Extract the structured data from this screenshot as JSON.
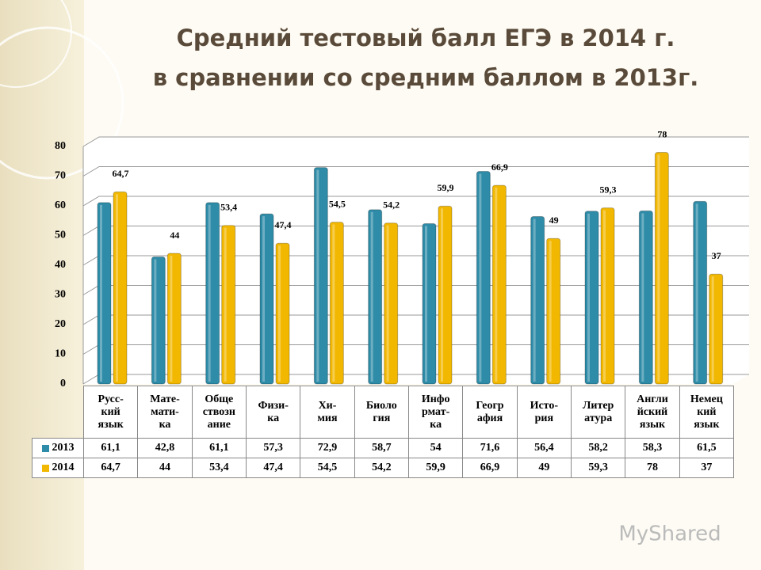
{
  "chart_data": {
    "type": "bar",
    "title": "Средний тестовый балл ЕГЭ в 2014 г.",
    "subtitle": "в сравнении со средним баллом в 2013г.",
    "categories": [
      "Русс-\nкий\nязык",
      "Мате-\nмати-\nка",
      "Обще\nствозн\nание",
      "Физи-\nка",
      "Хи-\nмия",
      "Биоло\nгия",
      "Инфо\nрмат-\nка",
      "Геогр\nафия",
      "Исто-\nрия",
      "Литер\nатура",
      "Англи\nйский\nязык",
      "Немец\nкий\nязык"
    ],
    "series": [
      {
        "name": "2013",
        "color": "#2e8ca8",
        "values": [
          61.1,
          42.8,
          61.1,
          57.3,
          72.9,
          58.7,
          54,
          71.6,
          56.4,
          58.2,
          58.3,
          61.5
        ],
        "value_labels": [
          "61,1",
          "42,8",
          "61,1",
          "57,3",
          "72,9",
          "58,7",
          "54",
          "71,6",
          "56,4",
          "58,2",
          "58,3",
          "61,5"
        ]
      },
      {
        "name": "2014",
        "color": "#f2b800",
        "values": [
          64.7,
          44,
          53.4,
          47.4,
          54.5,
          54.2,
          59.9,
          66.9,
          49,
          59.3,
          78,
          37
        ],
        "value_labels": [
          "64,7",
          "44",
          "53,4",
          "47,4",
          "54,5",
          "54,2",
          "59,9",
          "66,9",
          "49",
          "59,3",
          "78",
          "37"
        ]
      }
    ],
    "ylim": [
      0,
      80
    ],
    "yticks": [
      0,
      10,
      20,
      30,
      40,
      50,
      60,
      70,
      80
    ],
    "grid": true,
    "watermark": "MyShared"
  }
}
